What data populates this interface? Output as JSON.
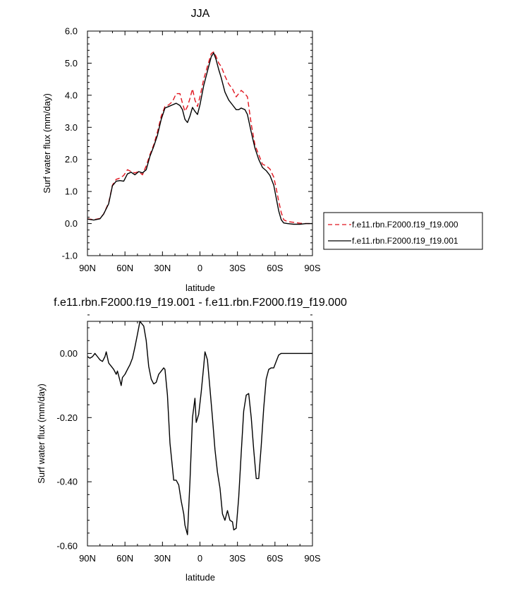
{
  "chart_data": [
    {
      "type": "line",
      "title": "JJA",
      "xlabel": "latitude",
      "ylabel": "Surf water flux (mm/day)",
      "xlim": [
        -90,
        90
      ],
      "ylim": [
        -1.0,
        6.0
      ],
      "x_direction": "north-to-south",
      "x_ticks": [
        {
          "value": -90,
          "label": "90N"
        },
        {
          "value": -60,
          "label": "60N"
        },
        {
          "value": -30,
          "label": "30N"
        },
        {
          "value": 0,
          "label": "0"
        },
        {
          "value": 30,
          "label": "30S"
        },
        {
          "value": 60,
          "label": "60S"
        },
        {
          "value": 90,
          "label": "90S"
        }
      ],
      "y_ticks": [
        {
          "value": -1.0,
          "label": "-1.0"
        },
        {
          "value": 0.0,
          "label": "0.0"
        },
        {
          "value": 1.0,
          "label": "1.0"
        },
        {
          "value": 2.0,
          "label": "2.0"
        },
        {
          "value": 3.0,
          "label": "3.0"
        },
        {
          "value": 4.0,
          "label": "4.0"
        },
        {
          "value": 5.0,
          "label": "5.0"
        },
        {
          "value": 6.0,
          "label": "6.0"
        }
      ],
      "legend_position": "right",
      "series": [
        {
          "name": "f.e11.rbn.F2000.f19_f19.000",
          "color": "#e0141e",
          "dash": "dashed",
          "points": [
            [
              -90,
              0.15
            ],
            [
              -85,
              0.12
            ],
            [
              -80,
              0.16
            ],
            [
              -77,
              0.3
            ],
            [
              -73,
              0.65
            ],
            [
              -70,
              1.2
            ],
            [
              -67,
              1.38
            ],
            [
              -64,
              1.42
            ],
            [
              -61,
              1.5
            ],
            [
              -58,
              1.68
            ],
            [
              -55,
              1.62
            ],
            [
              -52,
              1.58
            ],
            [
              -49,
              1.62
            ],
            [
              -46,
              1.52
            ],
            [
              -43,
              1.8
            ],
            [
              -40,
              2.15
            ],
            [
              -37,
              2.45
            ],
            [
              -34,
              2.85
            ],
            [
              -31,
              3.35
            ],
            [
              -28,
              3.65
            ],
            [
              -25,
              3.7
            ],
            [
              -22,
              3.8
            ],
            [
              -19,
              4.05
            ],
            [
              -16,
              4.05
            ],
            [
              -14,
              3.75
            ],
            [
              -12,
              3.5
            ],
            [
              -10,
              3.65
            ],
            [
              -8,
              3.9
            ],
            [
              -6,
              4.2
            ],
            [
              -4,
              3.85
            ],
            [
              -2,
              3.65
            ],
            [
              0,
              3.95
            ],
            [
              3,
              4.5
            ],
            [
              6,
              4.9
            ],
            [
              9,
              5.3
            ],
            [
              11,
              5.35
            ],
            [
              13,
              5.2
            ],
            [
              15,
              5.0
            ],
            [
              17,
              4.9
            ],
            [
              20,
              4.6
            ],
            [
              23,
              4.35
            ],
            [
              26,
              4.2
            ],
            [
              29,
              3.95
            ],
            [
              31,
              4.05
            ],
            [
              33,
              4.15
            ],
            [
              36,
              4.05
            ],
            [
              38,
              3.95
            ],
            [
              41,
              3.1
            ],
            [
              44,
              2.45
            ],
            [
              47,
              2.15
            ],
            [
              50,
              1.85
            ],
            [
              53,
              1.8
            ],
            [
              56,
              1.7
            ],
            [
              59,
              1.45
            ],
            [
              61,
              1.1
            ],
            [
              63,
              0.7
            ],
            [
              65,
              0.35
            ],
            [
              67,
              0.12
            ],
            [
              70,
              0.06
            ],
            [
              75,
              0.04
            ],
            [
              80,
              0.01
            ],
            [
              85,
              0.0
            ],
            [
              90,
              0.0
            ]
          ]
        },
        {
          "name": "f.e11.rbn.F2000.f19_f19.001",
          "color": "#000000",
          "dash": "solid",
          "points": [
            [
              -90,
              0.14
            ],
            [
              -85,
              0.11
            ],
            [
              -80,
              0.15
            ],
            [
              -77,
              0.3
            ],
            [
              -73,
              0.62
            ],
            [
              -70,
              1.18
            ],
            [
              -67,
              1.32
            ],
            [
              -64,
              1.34
            ],
            [
              -61,
              1.32
            ],
            [
              -58,
              1.55
            ],
            [
              -55,
              1.6
            ],
            [
              -52,
              1.52
            ],
            [
              -49,
              1.62
            ],
            [
              -46,
              1.58
            ],
            [
              -43,
              1.68
            ],
            [
              -40,
              2.1
            ],
            [
              -37,
              2.4
            ],
            [
              -34,
              2.75
            ],
            [
              -31,
              3.25
            ],
            [
              -28,
              3.6
            ],
            [
              -25,
              3.65
            ],
            [
              -22,
              3.7
            ],
            [
              -19,
              3.75
            ],
            [
              -16,
              3.68
            ],
            [
              -14,
              3.55
            ],
            [
              -12,
              3.25
            ],
            [
              -10,
              3.15
            ],
            [
              -8,
              3.35
            ],
            [
              -6,
              3.62
            ],
            [
              -4,
              3.5
            ],
            [
              -2,
              3.4
            ],
            [
              0,
              3.7
            ],
            [
              3,
              4.3
            ],
            [
              6,
              4.75
            ],
            [
              9,
              5.2
            ],
            [
              11,
              5.32
            ],
            [
              13,
              5.1
            ],
            [
              15,
              4.8
            ],
            [
              17,
              4.55
            ],
            [
              20,
              4.1
            ],
            [
              23,
              3.85
            ],
            [
              26,
              3.7
            ],
            [
              29,
              3.55
            ],
            [
              31,
              3.55
            ],
            [
              33,
              3.6
            ],
            [
              36,
              3.55
            ],
            [
              38,
              3.4
            ],
            [
              41,
              2.85
            ],
            [
              44,
              2.35
            ],
            [
              47,
              2.0
            ],
            [
              50,
              1.75
            ],
            [
              53,
              1.65
            ],
            [
              56,
              1.5
            ],
            [
              59,
              1.2
            ],
            [
              61,
              0.8
            ],
            [
              63,
              0.4
            ],
            [
              65,
              0.12
            ],
            [
              67,
              0.02
            ],
            [
              70,
              0.0
            ],
            [
              75,
              -0.02
            ],
            [
              80,
              -0.02
            ],
            [
              85,
              0.0
            ],
            [
              90,
              0.0
            ]
          ]
        }
      ]
    },
    {
      "type": "line",
      "title": "f.e11.rbn.F2000.f19_f19.001 - f.e11.rbn.F2000.f19_f19.000",
      "xlabel": "latitude",
      "ylabel": "Surf water flux (mm/day)",
      "xlim": [
        -90,
        90
      ],
      "ylim": [
        -0.6,
        0.1
      ],
      "x_direction": "north-to-south",
      "x_ticks": [
        {
          "value": -90,
          "label": "90N"
        },
        {
          "value": -60,
          "label": "60N"
        },
        {
          "value": -30,
          "label": "30N"
        },
        {
          "value": 0,
          "label": "0"
        },
        {
          "value": 30,
          "label": "30S"
        },
        {
          "value": 60,
          "label": "60S"
        },
        {
          "value": 90,
          "label": "90S"
        }
      ],
      "y_ticks": [
        {
          "value": -0.6,
          "label": "-0.60"
        },
        {
          "value": -0.4,
          "label": "-0.40"
        },
        {
          "value": -0.2,
          "label": "-0.20"
        },
        {
          "value": 0.0,
          "label": "0.00"
        }
      ],
      "series": [
        {
          "name": "",
          "color": "#000000",
          "dash": "solid",
          "points": [
            [
              -90,
              -0.01
            ],
            [
              -88,
              -0.015
            ],
            [
              -86,
              -0.01
            ],
            [
              -84,
              0.0
            ],
            [
              -82,
              -0.01
            ],
            [
              -80,
              -0.02
            ],
            [
              -78,
              -0.025
            ],
            [
              -76,
              -0.01
            ],
            [
              -75,
              0.005
            ],
            [
              -73,
              -0.03
            ],
            [
              -71,
              -0.04
            ],
            [
              -69,
              -0.05
            ],
            [
              -67,
              -0.065
            ],
            [
              -66,
              -0.055
            ],
            [
              -64,
              -0.085
            ],
            [
              -63,
              -0.1
            ],
            [
              -62,
              -0.075
            ],
            [
              -60,
              -0.065
            ],
            [
              -58,
              -0.05
            ],
            [
              -56,
              -0.035
            ],
            [
              -54,
              -0.015
            ],
            [
              -52,
              0.02
            ],
            [
              -50,
              0.06
            ],
            [
              -48,
              0.1
            ],
            [
              -45,
              0.085
            ],
            [
              -43,
              0.04
            ],
            [
              -41,
              -0.04
            ],
            [
              -39,
              -0.08
            ],
            [
              -37,
              -0.095
            ],
            [
              -35,
              -0.09
            ],
            [
              -33,
              -0.065
            ],
            [
              -31,
              -0.055
            ],
            [
              -29,
              -0.045
            ],
            [
              -28,
              -0.05
            ],
            [
              -26,
              -0.13
            ],
            [
              -24,
              -0.28
            ],
            [
              -21,
              -0.395
            ],
            [
              -19,
              -0.395
            ],
            [
              -17,
              -0.41
            ],
            [
              -15,
              -0.46
            ],
            [
              -13,
              -0.5
            ],
            [
              -12,
              -0.535
            ],
            [
              -10,
              -0.565
            ],
            [
              -8,
              -0.4
            ],
            [
              -6,
              -0.2
            ],
            [
              -4,
              -0.14
            ],
            [
              -3,
              -0.215
            ],
            [
              -1,
              -0.19
            ],
            [
              1,
              -0.12
            ],
            [
              3,
              -0.04
            ],
            [
              4,
              0.005
            ],
            [
              6,
              -0.02
            ],
            [
              8,
              -0.11
            ],
            [
              10,
              -0.2
            ],
            [
              12,
              -0.3
            ],
            [
              14,
              -0.37
            ],
            [
              16,
              -0.42
            ],
            [
              18,
              -0.5
            ],
            [
              20,
              -0.52
            ],
            [
              22,
              -0.49
            ],
            [
              24,
              -0.52
            ],
            [
              26,
              -0.525
            ],
            [
              27,
              -0.55
            ],
            [
              29,
              -0.545
            ],
            [
              31,
              -0.45
            ],
            [
              33,
              -0.31
            ],
            [
              35,
              -0.18
            ],
            [
              37,
              -0.13
            ],
            [
              39,
              -0.125
            ],
            [
              41,
              -0.2
            ],
            [
              43,
              -0.3
            ],
            [
              45,
              -0.39
            ],
            [
              47,
              -0.39
            ],
            [
              49,
              -0.29
            ],
            [
              51,
              -0.17
            ],
            [
              53,
              -0.08
            ],
            [
              55,
              -0.05
            ],
            [
              57,
              -0.045
            ],
            [
              59,
              -0.045
            ],
            [
              61,
              -0.025
            ],
            [
              63,
              -0.005
            ],
            [
              65,
              0.0
            ],
            [
              70,
              0.0
            ],
            [
              75,
              0.0
            ],
            [
              80,
              0.0
            ],
            [
              85,
              0.0
            ],
            [
              90,
              0.0
            ]
          ]
        }
      ]
    }
  ]
}
